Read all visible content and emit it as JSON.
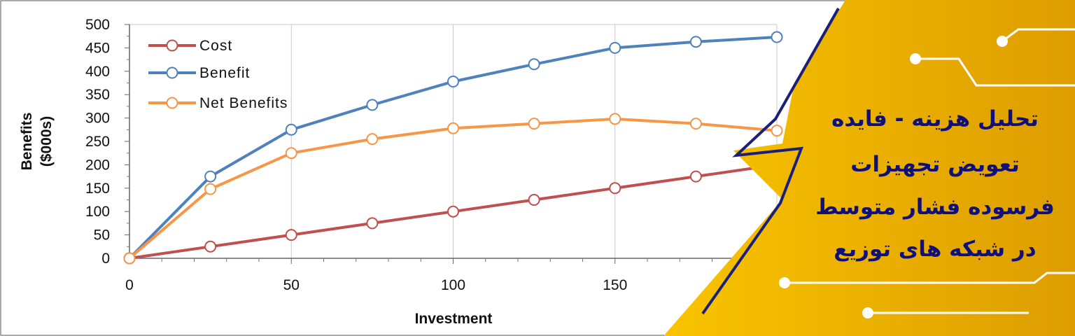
{
  "chart_data": {
    "type": "line",
    "xlabel": "Investment",
    "ylabel_lines": [
      "Benefits",
      "($000s)"
    ],
    "x": [
      0,
      25,
      50,
      75,
      100,
      125,
      150,
      175,
      200
    ],
    "x_ticks": [
      "0",
      "50",
      "100",
      "150"
    ],
    "y_ticks": [
      "0",
      "50",
      "100",
      "150",
      "200",
      "250",
      "300",
      "350",
      "400",
      "450",
      "500"
    ],
    "xlim": [
      0,
      200
    ],
    "ylim": [
      0,
      500
    ],
    "grid": "vertical",
    "legend_position": "top-left",
    "series": [
      {
        "name": "Cost",
        "color": "#c0504d",
        "values": [
          0,
          25,
          50,
          75,
          100,
          125,
          150,
          175,
          200
        ]
      },
      {
        "name": "Benefit",
        "color": "#4f81bd",
        "values": [
          0,
          175,
          275,
          328,
          378,
          415,
          450,
          463,
          473
        ]
      },
      {
        "name": "Net Benefits",
        "color": "#f79646",
        "values": [
          0,
          148,
          225,
          255,
          278,
          288,
          298,
          288,
          273
        ]
      }
    ]
  },
  "banner": {
    "title_lines": [
      "تحلیل هزینه - فایده",
      "تعویض تجهیزات",
      "فرسوده فشار متوسط",
      "در شبکه های توزیع"
    ],
    "title_color": "#10107a",
    "gradient_colors": [
      "#f9c200",
      "#e0a000"
    ]
  }
}
